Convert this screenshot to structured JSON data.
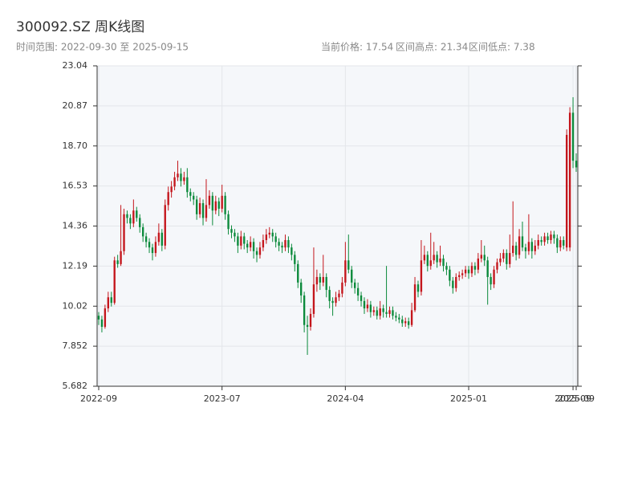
{
  "chart_data": {
    "type": "candlestick",
    "title": "300092.SZ 周K线图",
    "subtitle": "时间范围: 2022-09-30 至 2025-09-15",
    "annotations": [
      "当前价格: 17.54",
      "区间高点: 21.34",
      "区间低点: 7.38"
    ],
    "up_color": "#c4161c",
    "down_color": "#0b8a3b",
    "ylim": [
      5.682,
      23.04
    ],
    "yticks": [
      5.682,
      7.852,
      10.02,
      12.19,
      14.36,
      16.53,
      {
        "value": 18.7,
        "label": "18.70"
      },
      20.87,
      23.04
    ],
    "xlim": [
      0,
      151
    ],
    "xticks": [
      {
        "value": 0,
        "label": "2022-09"
      },
      {
        "value": 39,
        "label": "2023-07"
      },
      {
        "value": 78,
        "label": "2024-04"
      },
      {
        "value": 117,
        "label": "2025-01"
      },
      {
        "value": 150,
        "label": "2025-09"
      },
      {
        "value": 151,
        "label": "2025-09"
      }
    ],
    "grid": true,
    "candles": [
      [
        9.5,
        9.7,
        9.0,
        9.3
      ],
      [
        9.3,
        9.5,
        8.6,
        8.9
      ],
      [
        8.9,
        10.1,
        8.8,
        9.9
      ],
      [
        9.9,
        10.8,
        9.7,
        10.5
      ],
      [
        10.5,
        10.8,
        10.0,
        10.2
      ],
      [
        10.2,
        12.7,
        10.1,
        12.5
      ],
      [
        12.5,
        12.8,
        12.1,
        12.3
      ],
      [
        12.3,
        15.5,
        12.2,
        13.0
      ],
      [
        13.0,
        15.3,
        12.8,
        15.0
      ],
      [
        15.0,
        15.2,
        14.5,
        14.8
      ],
      [
        14.8,
        15.0,
        14.2,
        14.5
      ],
      [
        14.5,
        15.8,
        14.3,
        15.2
      ],
      [
        15.2,
        15.4,
        14.6,
        14.8
      ],
      [
        14.8,
        15.0,
        14.0,
        14.3
      ],
      [
        14.3,
        14.5,
        13.5,
        13.8
      ],
      [
        13.8,
        14.0,
        13.2,
        13.5
      ],
      [
        13.5,
        13.7,
        12.9,
        13.2
      ],
      [
        13.2,
        13.4,
        12.5,
        12.9
      ],
      [
        12.9,
        13.8,
        12.7,
        13.5
      ],
      [
        13.5,
        14.5,
        13.3,
        14.0
      ],
      [
        14.0,
        14.2,
        13.0,
        13.3
      ],
      [
        13.3,
        15.8,
        13.1,
        15.5
      ],
      [
        15.5,
        16.5,
        15.2,
        16.2
      ],
      [
        16.2,
        16.8,
        15.9,
        16.5
      ],
      [
        16.5,
        17.3,
        16.3,
        17.0
      ],
      [
        17.0,
        17.9,
        16.8,
        17.2
      ],
      [
        17.2,
        17.5,
        16.5,
        16.8
      ],
      [
        16.8,
        17.3,
        16.6,
        17.0
      ],
      [
        17.0,
        17.5,
        15.9,
        16.2
      ],
      [
        16.2,
        16.4,
        15.7,
        16.0
      ],
      [
        16.0,
        16.2,
        15.5,
        15.8
      ],
      [
        15.8,
        16.0,
        14.7,
        15.0
      ],
      [
        15.0,
        15.9,
        14.8,
        15.6
      ],
      [
        15.6,
        15.8,
        14.4,
        14.8
      ],
      [
        14.8,
        16.9,
        14.6,
        15.5
      ],
      [
        15.5,
        16.3,
        15.3,
        16.0
      ],
      [
        16.0,
        16.2,
        14.4,
        15.2
      ],
      [
        15.2,
        16.0,
        15.0,
        15.7
      ],
      [
        15.7,
        15.9,
        14.9,
        15.3
      ],
      [
        15.3,
        16.6,
        15.1,
        16.0
      ],
      [
        16.0,
        16.2,
        14.7,
        15.0
      ],
      [
        15.0,
        15.2,
        13.9,
        14.2
      ],
      [
        14.2,
        14.4,
        13.7,
        14.0
      ],
      [
        14.0,
        14.2,
        13.5,
        13.8
      ],
      [
        13.8,
        14.0,
        12.9,
        13.3
      ],
      [
        13.3,
        14.1,
        13.1,
        13.8
      ],
      [
        13.8,
        14.0,
        13.1,
        13.4
      ],
      [
        13.4,
        13.6,
        12.9,
        13.2
      ],
      [
        13.2,
        13.8,
        13.0,
        13.5
      ],
      [
        13.5,
        13.7,
        12.6,
        13.0
      ],
      [
        13.0,
        13.2,
        12.4,
        12.8
      ],
      [
        12.8,
        13.5,
        12.6,
        13.2
      ],
      [
        13.2,
        13.9,
        13.0,
        13.6
      ],
      [
        13.6,
        14.2,
        13.4,
        13.9
      ],
      [
        13.9,
        14.3,
        13.7,
        14.0
      ],
      [
        14.0,
        14.2,
        13.5,
        13.8
      ],
      [
        13.8,
        14.0,
        13.2,
        13.5
      ],
      [
        13.5,
        13.7,
        13.0,
        13.3
      ],
      [
        13.3,
        13.5,
        12.9,
        13.2
      ],
      [
        13.2,
        13.9,
        13.0,
        13.6
      ],
      [
        13.6,
        13.8,
        12.9,
        13.2
      ],
      [
        13.2,
        13.4,
        12.5,
        12.8
      ],
      [
        12.8,
        13.0,
        11.9,
        12.3
      ],
      [
        12.3,
        12.5,
        11.0,
        11.3
      ],
      [
        11.3,
        11.5,
        10.2,
        10.6
      ],
      [
        10.6,
        10.8,
        8.6,
        9.0
      ],
      [
        9.0,
        9.5,
        7.38,
        8.9
      ],
      [
        8.9,
        9.9,
        8.7,
        9.6
      ],
      [
        9.6,
        13.2,
        9.4,
        11.2
      ],
      [
        11.2,
        12.0,
        10.8,
        11.6
      ],
      [
        11.6,
        11.8,
        10.9,
        11.3
      ],
      [
        11.3,
        12.8,
        11.1,
        11.6
      ],
      [
        11.6,
        11.8,
        10.5,
        10.9
      ],
      [
        10.9,
        11.1,
        9.9,
        10.3
      ],
      [
        10.3,
        10.5,
        9.5,
        10.2
      ],
      [
        10.2,
        10.8,
        10.0,
        10.5
      ],
      [
        10.5,
        10.9,
        10.3,
        10.7
      ],
      [
        10.7,
        11.6,
        10.5,
        11.3
      ],
      [
        11.3,
        13.5,
        11.1,
        12.5
      ],
      [
        12.5,
        13.9,
        11.8,
        12.0
      ],
      [
        12.0,
        12.2,
        11.0,
        11.3
      ],
      [
        11.3,
        11.5,
        10.7,
        11.0
      ],
      [
        11.0,
        11.3,
        10.3,
        10.6
      ],
      [
        10.6,
        10.8,
        10.0,
        10.3
      ],
      [
        10.3,
        10.5,
        9.6,
        9.9
      ],
      [
        9.9,
        10.4,
        9.7,
        10.1
      ],
      [
        10.1,
        10.3,
        9.4,
        9.7
      ],
      [
        9.7,
        10.0,
        9.5,
        9.8
      ],
      [
        9.8,
        10.0,
        9.3,
        9.5
      ],
      [
        9.5,
        10.3,
        9.3,
        9.9
      ],
      [
        9.9,
        10.1,
        9.4,
        9.7
      ],
      [
        9.7,
        12.2,
        9.4,
        9.6
      ],
      [
        9.6,
        10.0,
        9.4,
        9.8
      ],
      [
        9.8,
        10.0,
        9.3,
        9.5
      ],
      [
        9.5,
        9.7,
        9.2,
        9.4
      ],
      [
        9.4,
        9.6,
        9.1,
        9.3
      ],
      [
        9.3,
        9.5,
        8.9,
        9.1
      ],
      [
        9.1,
        9.4,
        8.9,
        9.2
      ],
      [
        9.2,
        9.4,
        8.8,
        9.0
      ],
      [
        9.0,
        10.2,
        8.9,
        9.8
      ],
      [
        9.8,
        11.6,
        9.7,
        11.2
      ],
      [
        11.2,
        11.4,
        10.5,
        10.8
      ],
      [
        10.8,
        13.6,
        10.6,
        12.5
      ],
      [
        12.5,
        13.3,
        12.3,
        12.8
      ],
      [
        12.8,
        13.0,
        11.9,
        12.2
      ],
      [
        12.2,
        14.0,
        12.0,
        12.5
      ],
      [
        12.5,
        13.5,
        12.3,
        12.8
      ],
      [
        12.8,
        13.0,
        12.1,
        12.4
      ],
      [
        12.4,
        13.3,
        12.2,
        12.6
      ],
      [
        12.6,
        12.8,
        11.9,
        12.2
      ],
      [
        12.2,
        12.4,
        11.7,
        12.0
      ],
      [
        12.0,
        12.2,
        11.1,
        11.4
      ],
      [
        11.4,
        11.6,
        10.7,
        11.0
      ],
      [
        11.0,
        11.8,
        10.8,
        11.6
      ],
      [
        11.6,
        11.9,
        11.4,
        11.7
      ],
      [
        11.7,
        12.0,
        11.5,
        11.8
      ],
      [
        11.8,
        12.2,
        11.6,
        12.0
      ],
      [
        12.0,
        12.2,
        11.5,
        11.8
      ],
      [
        11.8,
        12.4,
        11.6,
        12.2
      ],
      [
        12.2,
        12.4,
        11.7,
        12.0
      ],
      [
        12.0,
        12.9,
        11.8,
        12.6
      ],
      [
        12.6,
        13.6,
        12.4,
        12.8
      ],
      [
        12.8,
        13.3,
        12.2,
        12.5
      ],
      [
        12.5,
        12.7,
        10.1,
        11.6
      ],
      [
        11.6,
        11.8,
        10.9,
        11.2
      ],
      [
        11.2,
        12.2,
        11.0,
        12.0
      ],
      [
        12.0,
        12.6,
        11.8,
        12.4
      ],
      [
        12.4,
        12.9,
        12.2,
        12.6
      ],
      [
        12.6,
        13.1,
        12.4,
        12.9
      ],
      [
        12.9,
        13.1,
        12.0,
        12.3
      ],
      [
        12.3,
        13.9,
        12.1,
        12.9
      ],
      [
        12.9,
        15.7,
        12.7,
        13.3
      ],
      [
        13.3,
        13.5,
        12.5,
        12.8
      ],
      [
        12.8,
        14.2,
        12.6,
        13.8
      ],
      [
        13.8,
        14.6,
        13.0,
        13.2
      ],
      [
        13.2,
        13.4,
        12.6,
        13.0
      ],
      [
        13.0,
        15.0,
        12.8,
        13.5
      ],
      [
        13.5,
        13.7,
        12.6,
        13.0
      ],
      [
        13.0,
        13.6,
        12.8,
        13.3
      ],
      [
        13.3,
        13.9,
        13.1,
        13.6
      ],
      [
        13.6,
        13.8,
        13.3,
        13.5
      ],
      [
        13.5,
        14.0,
        13.3,
        13.8
      ],
      [
        13.8,
        14.0,
        13.4,
        13.6
      ],
      [
        13.6,
        14.1,
        13.4,
        13.9
      ],
      [
        13.9,
        14.1,
        13.4,
        13.7
      ],
      [
        13.7,
        13.9,
        12.9,
        13.2
      ],
      [
        13.2,
        13.8,
        13.0,
        13.6
      ],
      [
        13.6,
        13.8,
        13.1,
        13.3
      ],
      [
        13.2,
        19.6,
        13.0,
        19.3
      ],
      [
        13.2,
        20.8,
        13.0,
        20.5
      ],
      [
        20.5,
        21.34,
        17.5,
        17.9
      ],
      [
        17.9,
        18.3,
        17.3,
        17.54
      ]
    ]
  }
}
